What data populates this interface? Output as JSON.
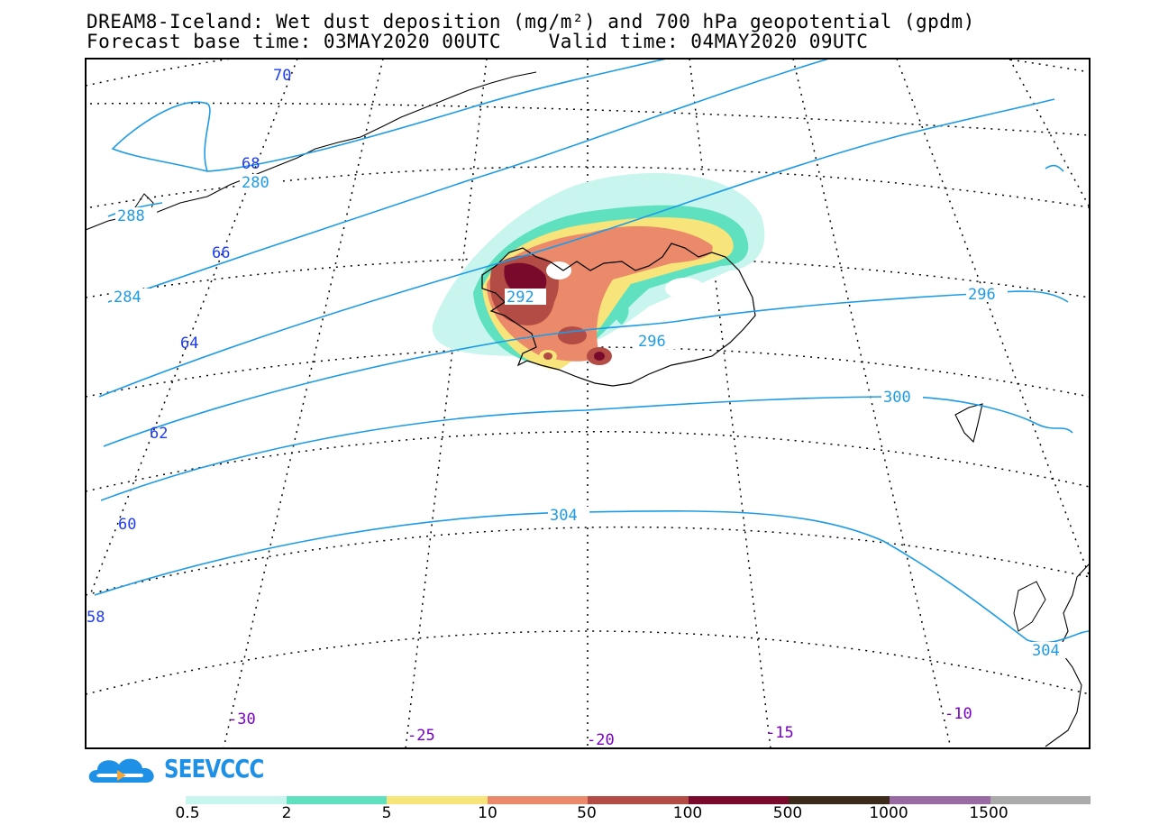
{
  "title": {
    "line1": "DREAM8-Iceland: Wet dust deposition (mg/m²) and 700 hPa geopotential (gpdm)",
    "line2": "Forecast base time: 03MAY2020 00UTC    Valid time: 04MAY2020 09UTC"
  },
  "map": {
    "lat_labels": [
      "70",
      "68",
      "66",
      "64",
      "62",
      "60",
      "58"
    ],
    "lon_labels": [
      "-30",
      "-25",
      "-20",
      "-15",
      "-10"
    ],
    "geopotential_labels": [
      "280",
      "288",
      "284",
      "292",
      "296",
      "296",
      "300",
      "304",
      "304"
    ],
    "colors": {
      "frame": "#000000",
      "contour": "#1e9be6",
      "lat_label": "#1e3cf0",
      "lon_label": "#7a00c8",
      "graticule": "#000000"
    }
  },
  "logo": {
    "text": "SEEVCCC"
  },
  "legend": {
    "labels": [
      "0.5",
      "2",
      "5",
      "10",
      "50",
      "100",
      "500",
      "1000",
      "1500"
    ],
    "colors": [
      "#c8f5ee",
      "#5fe1c0",
      "#f7e47a",
      "#eb8a6a",
      "#b34c44",
      "#7a0a2c",
      "#3c2a1a",
      "#9a6aa5",
      "#aaaaaa"
    ]
  }
}
